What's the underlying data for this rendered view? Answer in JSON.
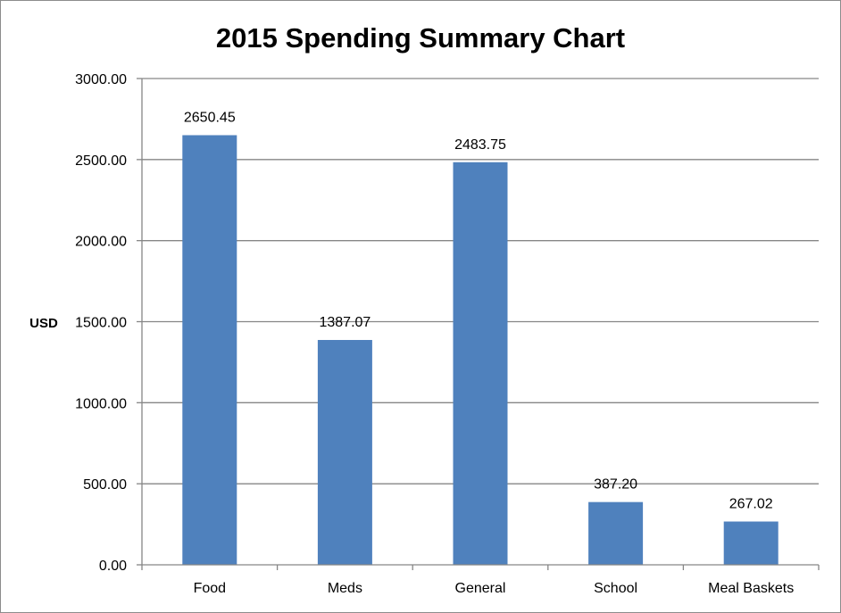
{
  "chart_data": {
    "type": "bar",
    "title": "2015 Spending Summary Chart",
    "xlabel": "",
    "ylabel": "USD",
    "categories": [
      "Food",
      "Meds",
      "General",
      "School",
      "Meal Baskets"
    ],
    "values": [
      2650.45,
      1387.07,
      2483.75,
      387.2,
      267.02
    ],
    "value_labels": [
      "2650.45",
      "1387.07",
      "2483.75",
      "387.20",
      "267.02"
    ],
    "ylim": [
      0,
      3000
    ],
    "yticks": [
      0,
      500,
      1000,
      1500,
      2000,
      2500,
      3000
    ],
    "ytick_labels": [
      "0.00",
      "500.00",
      "1000.00",
      "1500.00",
      "2000.00",
      "2500.00",
      "3000.00"
    ],
    "grid": true,
    "legend": "none",
    "bar_color": "#4f81bd",
    "grid_color": "#868686"
  }
}
